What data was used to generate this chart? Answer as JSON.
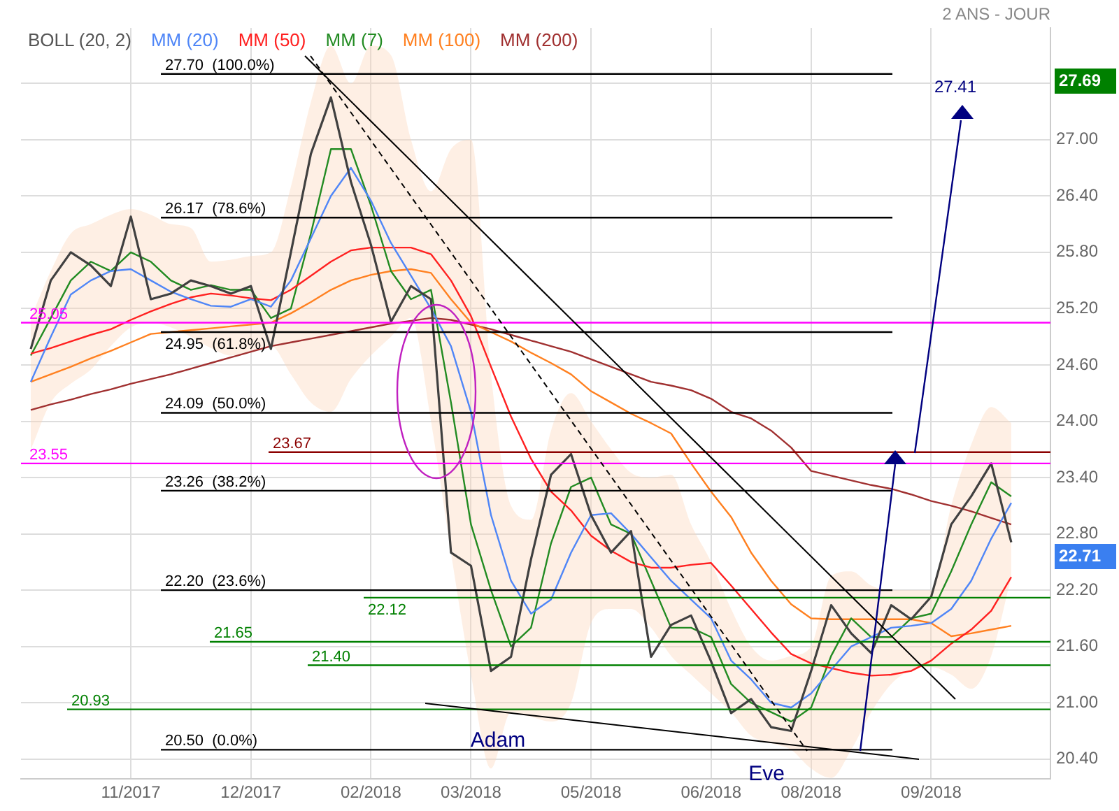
{
  "chart_data": {
    "type": "line",
    "subtitle": "2 ANS - JOUR",
    "categories": [
      null,
      null,
      null,
      null,
      null,
      "11/2017",
      null,
      null,
      null,
      null,
      null,
      "12/2017",
      null,
      null,
      null,
      null,
      null,
      "02/2018",
      null,
      null,
      null,
      null,
      "03/2018",
      null,
      null,
      null,
      null,
      null,
      "05/2018",
      null,
      null,
      null,
      null,
      null,
      "06/2018",
      null,
      null,
      null,
      null,
      "08/2018",
      null,
      null,
      null,
      null,
      null,
      "09/2018",
      null,
      null,
      null,
      null
    ],
    "ylim": [
      20.19,
      28.19
    ],
    "yticks": [
      {
        "value": 20.4,
        "label": "20.40"
      },
      {
        "value": 21,
        "label": "21.00"
      },
      {
        "value": 21.6,
        "label": "21.60"
      },
      {
        "value": 22.2,
        "label": "22.20"
      },
      {
        "value": 22.8,
        "label": "22.80"
      },
      {
        "value": 23.4,
        "label": "23.40"
      },
      {
        "value": 24,
        "label": "24.00"
      },
      {
        "value": 24.6,
        "label": "24.60"
      },
      {
        "value": 25.2,
        "label": "25.20"
      },
      {
        "value": 25.8,
        "label": "25.80"
      },
      {
        "value": 26.4,
        "label": "26.40"
      },
      {
        "value": 27,
        "label": "27.00"
      },
      {
        "value": 27.6,
        "label": null
      }
    ],
    "grid": true,
    "legend": "top left",
    "legend_title": "BOLL (20, 2)",
    "marker": "none",
    "line_style": "solid",
    "series": [
      {
        "type": "line",
        "color": "#404040",
        "values": [
          24.77,
          25.5,
          25.8,
          25.66,
          25.44,
          26.18,
          25.3,
          25.36,
          25.5,
          25.44,
          25.36,
          25.44,
          24.77,
          25.8,
          26.85,
          27.45,
          26.55,
          25.88,
          25.06,
          25.44,
          25.3,
          22.6,
          22.46,
          21.34,
          21.49,
          22.53,
          23.43,
          23.65,
          23.0,
          22.6,
          22.83,
          21.49,
          21.83,
          21.93,
          21.44,
          20.89,
          21.04,
          20.74,
          20.7,
          21.34,
          22.04,
          21.74,
          21.53,
          22.04,
          21.89,
          22.13,
          22.9,
          23.2,
          23.55,
          22.71
        ]
      },
      {
        "name": "MM (20)",
        "type": "line",
        "color": "#4f86f7",
        "upper": [
          25.1,
          25.6,
          26.0,
          26.1,
          26.2,
          26.26,
          26.2,
          26.1,
          26.06,
          25.7,
          25.72,
          25.76,
          25.8,
          26.5,
          27.4,
          28.0,
          27.6,
          28.0,
          27.9,
          27.0,
          26.45,
          26.9,
          27.0,
          24.5,
          23.1,
          22.95,
          23.9,
          24.3,
          24.0,
          23.7,
          23.45,
          23.4,
          23.43,
          22.9,
          22.5,
          22.0,
          21.6,
          21.45,
          21.5,
          21.6,
          22.35,
          22.4,
          22.25,
          22.2,
          22.2,
          22.2,
          23.1,
          23.75,
          24.15,
          23.98
        ],
        "lower": [
          23.7,
          24.2,
          24.4,
          24.55,
          24.8,
          25.0,
          25.05,
          25.0,
          24.9,
          24.78,
          24.7,
          24.75,
          24.8,
          24.5,
          24.2,
          24.1,
          24.45,
          24.7,
          24.9,
          25.1,
          24.0,
          22.6,
          21.3,
          20.3,
          20.9,
          20.85,
          20.8,
          21.0,
          21.85,
          22.0,
          22.0,
          21.8,
          21.5,
          21.3,
          21.1,
          20.9,
          20.65,
          20.57,
          20.5,
          20.3,
          20.2,
          20.5,
          20.9,
          21.2,
          21.35,
          21.38,
          21.3,
          21.15,
          21.5,
          22.34
        ],
        "values": [
          24.42,
          24.9,
          25.35,
          25.5,
          25.6,
          25.62,
          25.5,
          25.38,
          25.3,
          25.23,
          25.22,
          25.3,
          25.22,
          25.5,
          25.95,
          26.4,
          26.7,
          26.35,
          25.9,
          25.55,
          25.2,
          24.8,
          24.1,
          23.0,
          22.3,
          21.95,
          22.1,
          22.6,
          23.0,
          23.02,
          22.8,
          22.55,
          22.3,
          22.1,
          21.9,
          21.45,
          21.25,
          21.0,
          20.95,
          21.1,
          21.35,
          21.6,
          21.7,
          21.8,
          21.82,
          21.85,
          22.0,
          22.3,
          22.75,
          23.13
        ]
      },
      {
        "name": "MM (50)",
        "type": "line",
        "color": "#ff2020",
        "values": [
          24.72,
          24.78,
          24.85,
          24.92,
          24.98,
          25.08,
          25.17,
          25.25,
          25.32,
          25.36,
          25.34,
          25.31,
          25.29,
          25.4,
          25.55,
          25.7,
          25.82,
          25.85,
          25.85,
          25.85,
          25.78,
          25.5,
          25.12,
          24.58,
          24.05,
          23.6,
          23.25,
          23.05,
          22.78,
          22.62,
          22.5,
          22.44,
          22.44,
          22.47,
          22.49,
          22.25,
          22.0,
          21.75,
          21.52,
          21.42,
          21.37,
          21.32,
          21.29,
          21.3,
          21.34,
          21.45,
          21.63,
          21.78,
          21.98,
          22.34
        ]
      },
      {
        "name": "MM (7)",
        "type": "line",
        "color": "#228b22",
        "values": [
          24.7,
          25.1,
          25.5,
          25.7,
          25.6,
          25.8,
          25.7,
          25.5,
          25.4,
          25.45,
          25.4,
          25.4,
          25.1,
          25.2,
          26.0,
          26.9,
          26.9,
          26.3,
          25.6,
          25.3,
          25.4,
          24.2,
          22.9,
          22.2,
          21.6,
          21.8,
          22.7,
          23.3,
          23.4,
          22.9,
          22.8,
          22.3,
          21.8,
          21.8,
          21.7,
          21.2,
          21.0,
          20.9,
          20.8,
          20.95,
          21.5,
          21.9,
          21.7,
          21.7,
          21.9,
          21.95,
          22.4,
          22.9,
          23.35,
          23.2
        ]
      },
      {
        "name": "MM (100)",
        "type": "line",
        "color": "#ff8020",
        "values": [
          24.42,
          24.5,
          24.58,
          24.67,
          24.75,
          24.84,
          24.93,
          24.95,
          24.97,
          24.99,
          25.01,
          25.03,
          25.05,
          25.15,
          25.27,
          25.4,
          25.5,
          25.56,
          25.6,
          25.62,
          25.58,
          25.3,
          25.05,
          24.95,
          24.85,
          24.73,
          24.62,
          24.5,
          24.32,
          24.2,
          24.08,
          23.98,
          23.87,
          23.55,
          23.25,
          22.98,
          22.6,
          22.3,
          22.05,
          21.9,
          21.89,
          21.89,
          21.89,
          21.89,
          21.89,
          21.85,
          21.71,
          21.74,
          21.78,
          21.82
        ]
      },
      {
        "name": "MM (200)",
        "type": "line",
        "color": "#a03030",
        "values": [
          24.12,
          24.18,
          24.23,
          24.29,
          24.34,
          24.4,
          24.45,
          24.5,
          24.56,
          24.62,
          24.68,
          24.74,
          24.8,
          24.84,
          24.88,
          24.92,
          24.96,
          25.0,
          25.04,
          25.07,
          25.1,
          25.08,
          25.03,
          24.98,
          24.92,
          24.86,
          24.8,
          24.74,
          24.66,
          24.58,
          24.5,
          24.42,
          24.38,
          24.33,
          24.24,
          24.1,
          24.03,
          23.9,
          23.72,
          23.47,
          23.42,
          23.37,
          23.32,
          23.28,
          23.22,
          23.15,
          23.1,
          23.04,
          22.97,
          22.9
        ]
      }
    ],
    "ref_lines": [
      {
        "axis": "y",
        "value": 27.7,
        "label": "27.70  (100.0%)",
        "color": "#000000"
      },
      {
        "axis": "y",
        "value": 26.17,
        "label": "26.17  (78.6%)",
        "color": "#000000"
      },
      {
        "axis": "y",
        "value": 24.95,
        "label": "24.95  (61.8%)",
        "color": "#000000"
      },
      {
        "axis": "y",
        "value": 24.09,
        "label": "24.09  (50.0%)",
        "color": "#000000"
      },
      {
        "axis": "y",
        "value": 23.26,
        "label": "23.26  (38.2%)",
        "color": "#000000"
      },
      {
        "axis": "y",
        "value": 22.2,
        "label": "22.20  (23.6%)",
        "color": "#000000"
      },
      {
        "axis": "y",
        "value": 20.5,
        "label": "20.50  (0.0%)",
        "color": "#000000"
      },
      {
        "axis": "y",
        "value": 25.05,
        "label": "25.05",
        "color": "#ff00ff"
      },
      {
        "axis": "y",
        "value": 23.55,
        "label": "23.55",
        "color": "#ff00ff"
      },
      {
        "axis": "y",
        "value": 23.67,
        "label": "23.67",
        "color": "#8b0000"
      },
      {
        "axis": "y",
        "value": 22.12,
        "label": "22.12",
        "color": "#008000"
      },
      {
        "axis": "y",
        "value": 21.65,
        "label": "21.65",
        "color": "#008000"
      },
      {
        "axis": "y",
        "value": 21.4,
        "label": "21.40",
        "color": "#008000"
      },
      {
        "axis": "y",
        "value": 20.93,
        "label": "20.93",
        "color": "#008000"
      }
    ],
    "annotations": [
      "27.41",
      "Adam",
      "Eve",
      "27.69",
      "22.71"
    ]
  }
}
